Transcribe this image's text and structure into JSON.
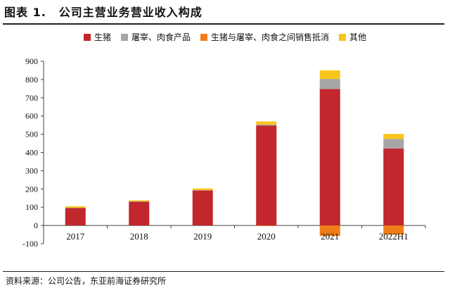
{
  "figure": {
    "label": "图表 1.",
    "title": "公司主营业务营业收入构成",
    "source": "资料来源：公司公告，东亚前海证券研究所"
  },
  "chart_data": {
    "type": "bar",
    "stacked": true,
    "categories": [
      "2017",
      "2018",
      "2019",
      "2020",
      "2021",
      "2022H1"
    ],
    "series": [
      {
        "name": "生猪",
        "color": "#C1272D",
        "values": [
          95,
          130,
          192,
          548,
          748,
          422
        ]
      },
      {
        "name": "屠宰、肉食产品",
        "color": "#A6A6A6",
        "values": [
          2,
          2,
          2,
          5,
          55,
          52
        ]
      },
      {
        "name": "生猪与屠宰、肉食之间销售抵消",
        "color": "#F07D17",
        "values": [
          0,
          0,
          0,
          -3,
          -58,
          -50
        ]
      },
      {
        "name": "其他",
        "color": "#F8C51C",
        "values": [
          8,
          6,
          9,
          17,
          47,
          28
        ]
      }
    ],
    "ylim": [
      -100,
      900
    ],
    "yticks": [
      -100,
      0,
      100,
      200,
      300,
      400,
      500,
      600,
      700,
      800,
      900
    ],
    "legend_position": "top",
    "grid": false
  }
}
